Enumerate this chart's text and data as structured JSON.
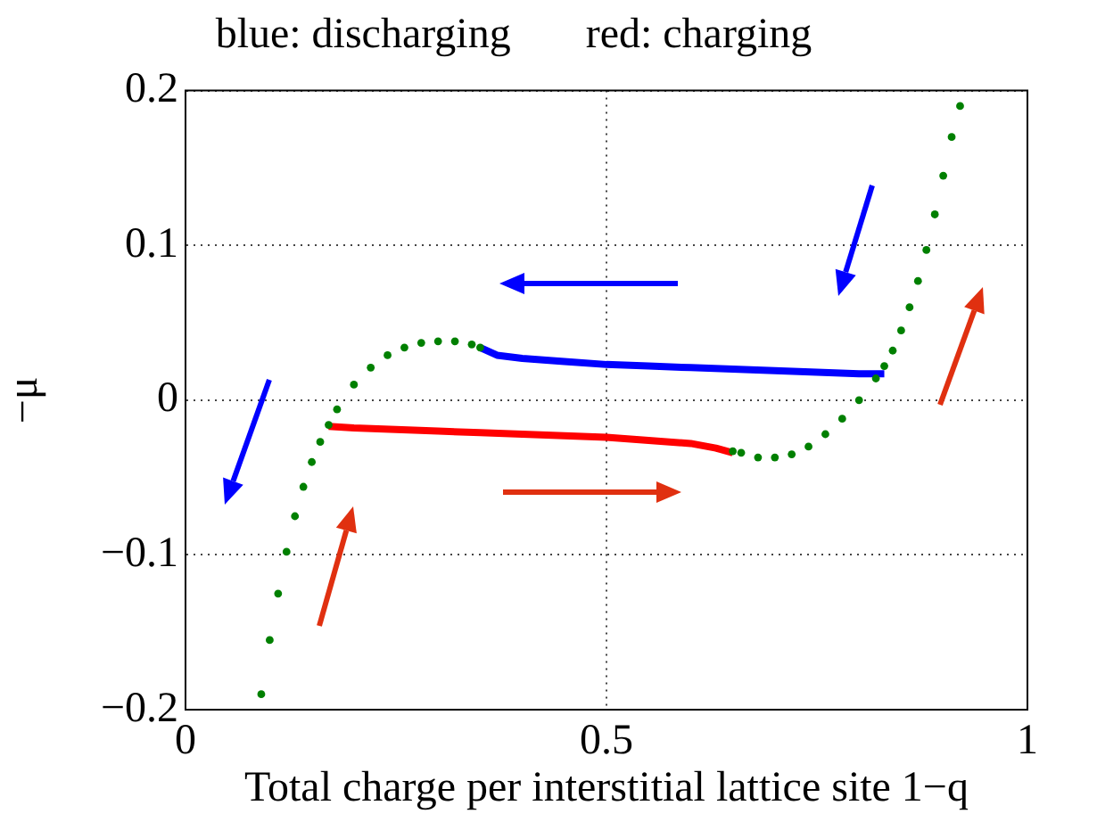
{
  "chart_data": {
    "type": "line",
    "title": "blue: discharging       red: charging",
    "xlabel": "Total charge per interstitial lattice site 1−q",
    "ylabel": "−μ",
    "xlim": [
      0,
      1
    ],
    "ylim": [
      -0.2,
      0.2
    ],
    "xticks": [
      0,
      0.5,
      1
    ],
    "yticks": [
      {
        "value": -0.2,
        "label": "−0.2"
      },
      {
        "value": -0.1,
        "label": "−0.1"
      },
      0,
      0.1,
      0.2
    ],
    "grid": true,
    "legend": false,
    "series": [
      {
        "type": "scatter",
        "marker": "circle",
        "color": "#008000",
        "x": [
          0.09,
          0.1,
          0.11,
          0.12,
          0.13,
          0.14,
          0.15,
          0.16,
          0.17,
          0.18,
          0.2,
          0.22,
          0.24,
          0.26,
          0.28,
          0.3,
          0.32,
          0.34,
          0.35,
          0.5,
          0.65,
          0.66,
          0.68,
          0.7,
          0.72,
          0.74,
          0.76,
          0.78,
          0.8,
          0.82,
          0.83,
          0.84,
          0.85,
          0.86,
          0.87,
          0.88,
          0.89,
          0.9,
          0.91,
          0.92
        ],
        "values": [
          -0.19,
          -0.155,
          -0.125,
          -0.098,
          -0.075,
          -0.056,
          -0.04,
          -0.027,
          -0.016,
          -0.006,
          0.01,
          0.021,
          0.029,
          0.034,
          0.037,
          0.038,
          0.038,
          0.036,
          0.034,
          null,
          -0.033,
          -0.034,
          -0.037,
          -0.037,
          -0.035,
          -0.03,
          -0.022,
          -0.012,
          0,
          0.014,
          0.022,
          0.032,
          0.045,
          0.06,
          0.077,
          0.097,
          0.12,
          0.145,
          0.17,
          0.19
        ]
      },
      {
        "type": "line",
        "marker": "none",
        "color": "#0000ff",
        "x": [
          0.35,
          0.37,
          0.4,
          0.45,
          0.5,
          0.55,
          0.6,
          0.65,
          0.7,
          0.75,
          0.8,
          0.83
        ],
        "values": [
          0.034,
          0.029,
          0.027,
          0.025,
          0.023,
          0.022,
          0.021,
          0.02,
          0.019,
          0.018,
          0.017,
          0.017
        ]
      },
      {
        "type": "line",
        "marker": "none",
        "color": "#ff0000",
        "x": [
          0.17,
          0.2,
          0.25,
          0.3,
          0.35,
          0.4,
          0.45,
          0.5,
          0.55,
          0.6,
          0.63,
          0.65
        ],
        "values": [
          -0.017,
          -0.018,
          -0.019,
          -0.02,
          -0.021,
          -0.022,
          -0.023,
          -0.024,
          -0.026,
          -0.028,
          -0.031,
          -0.034
        ]
      }
    ]
  }
}
